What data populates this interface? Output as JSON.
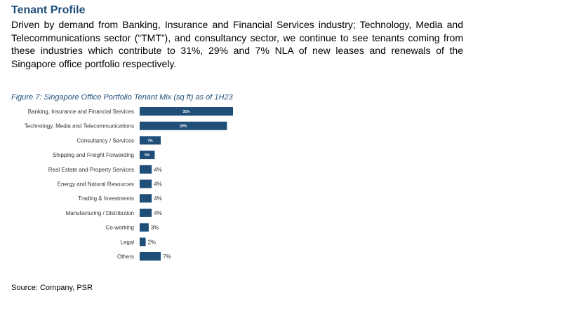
{
  "section": {
    "title": "Tenant Profile",
    "paragraph": "Driven by demand from Banking, Insurance and Financial Services industry; Technology, Media and Telecommunications sector (“TMT”), and consultancy sector, we continue to see tenants coming from these industries which contribute to 31%, 29% and 7% NLA of new leases and renewals of the Singapore office portfolio respectively."
  },
  "figure": {
    "caption": "Figure 7: Singapore Office Portfolio Tenant Mix (sq ft) as of 1H23"
  },
  "chart_data": {
    "type": "bar",
    "orientation": "horizontal",
    "categories": [
      "Banking, Insurance and Financial Services",
      "Technology, Media and Telecommunications",
      "Consultancy / Services",
      "Shipping and Freight Forwarding",
      "Real Estate and Property Services",
      "Energy and Natural Resources",
      "Trading & Investments",
      "Manufacturing / Distribution",
      "Co-working",
      "Legal",
      "Others"
    ],
    "values": [
      31,
      29,
      7,
      5,
      4,
      4,
      4,
      4,
      3,
      2,
      7
    ],
    "labels": [
      "31%",
      "29%",
      "7%",
      "5%",
      "4%",
      "4%",
      "4%",
      "4%",
      "3%",
      "2%",
      "7%"
    ],
    "label_inside": [
      true,
      true,
      true,
      true,
      false,
      false,
      false,
      false,
      false,
      false,
      false
    ],
    "bar_color": "#1f4e79",
    "xlim": [
      0,
      31
    ],
    "grid": false,
    "legend": "none"
  },
  "source": "Source: Company, PSR"
}
